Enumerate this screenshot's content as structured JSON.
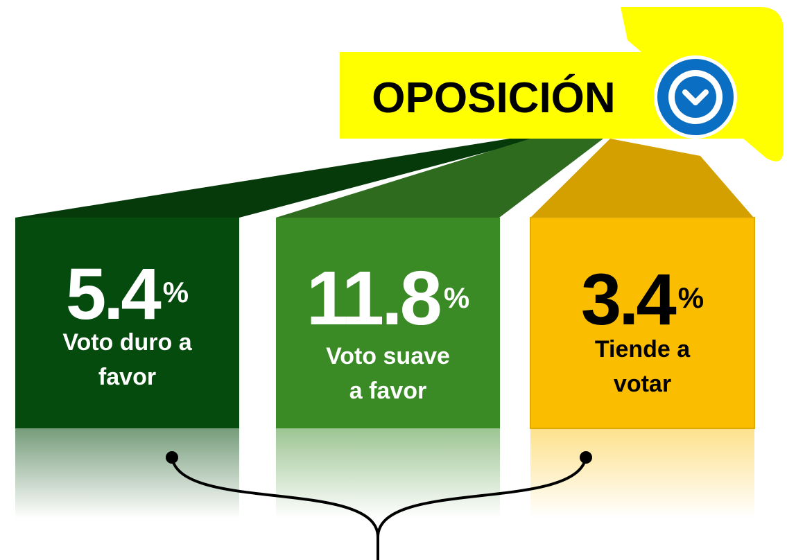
{
  "header": {
    "title": "OPOSICIÓN"
  },
  "boxes": [
    {
      "value": 5.4,
      "unit": "%",
      "label_lines": [
        "Voto duro a",
        "favor"
      ]
    },
    {
      "value": 11.8,
      "unit": "%",
      "label_lines": [
        "Voto suave",
        "a favor"
      ]
    },
    {
      "value": 3.4,
      "unit": "%",
      "label_lines": [
        "Tiende a",
        "votar"
      ]
    }
  ]
}
